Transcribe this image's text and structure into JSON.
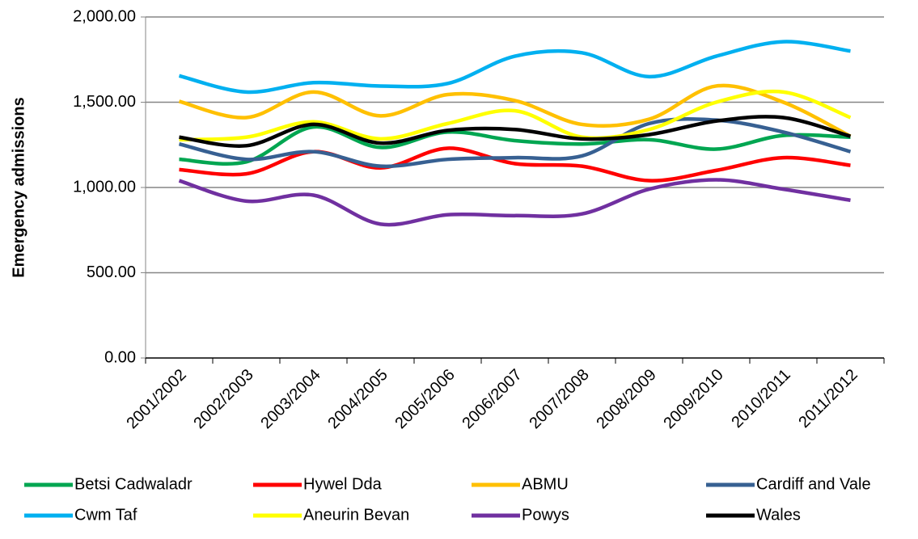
{
  "chart_data": {
    "type": "line",
    "y_label": "Emergency admissions",
    "categories": [
      "2001/2002",
      "2002/2003",
      "2003/2004",
      "2004/2005",
      "2005/2006",
      "2006/2007",
      "2007/2008",
      "2008/2009",
      "2009/2010",
      "2010/2011",
      "2011/2012"
    ],
    "series": [
      {
        "name": "Betsi Cadwaladr",
        "color": "#00a651",
        "values": [
          1165,
          1150,
          1355,
          1235,
          1325,
          1275,
          1255,
          1280,
          1225,
          1305,
          1295
        ]
      },
      {
        "name": "Hywel Dda",
        "color": "#ff0000",
        "values": [
          1105,
          1080,
          1210,
          1115,
          1230,
          1140,
          1125,
          1040,
          1100,
          1175,
          1130
        ]
      },
      {
        "name": "ABMU",
        "color": "#ffc000",
        "values": [
          1505,
          1410,
          1560,
          1420,
          1545,
          1510,
          1370,
          1400,
          1595,
          1500,
          1300
        ]
      },
      {
        "name": "Cardiff and Vale",
        "color": "#376092",
        "values": [
          1255,
          1165,
          1210,
          1125,
          1165,
          1175,
          1185,
          1375,
          1395,
          1325,
          1210
        ]
      },
      {
        "name": "Cwm Taf",
        "color": "#00b0f0",
        "values": [
          1655,
          1560,
          1615,
          1595,
          1610,
          1770,
          1790,
          1650,
          1770,
          1855,
          1800
        ]
      },
      {
        "name": "Aneurin Bevan",
        "color": "#ffff00",
        "values": [
          1280,
          1295,
          1385,
          1285,
          1375,
          1450,
          1295,
          1340,
          1500,
          1560,
          1410
        ]
      },
      {
        "name": "Powys",
        "color": "#7030a0",
        "values": [
          1040,
          920,
          955,
          785,
          840,
          835,
          845,
          990,
          1045,
          990,
          925
        ]
      },
      {
        "name": "Wales",
        "color": "#000000",
        "values": [
          1295,
          1245,
          1370,
          1260,
          1335,
          1340,
          1285,
          1310,
          1390,
          1410,
          1300
        ]
      }
    ],
    "ylim": [
      0,
      2000
    ],
    "yticks": [
      {
        "value": 0,
        "label": "0.00"
      },
      {
        "value": 500,
        "label": "500.00"
      },
      {
        "value": 1000,
        "label": "1,000.00"
      },
      {
        "value": 1500,
        "label": "1,500.00"
      },
      {
        "value": 2000,
        "label": "2,000.00"
      }
    ],
    "grid": true,
    "smooth": true,
    "legend": "bottom"
  }
}
